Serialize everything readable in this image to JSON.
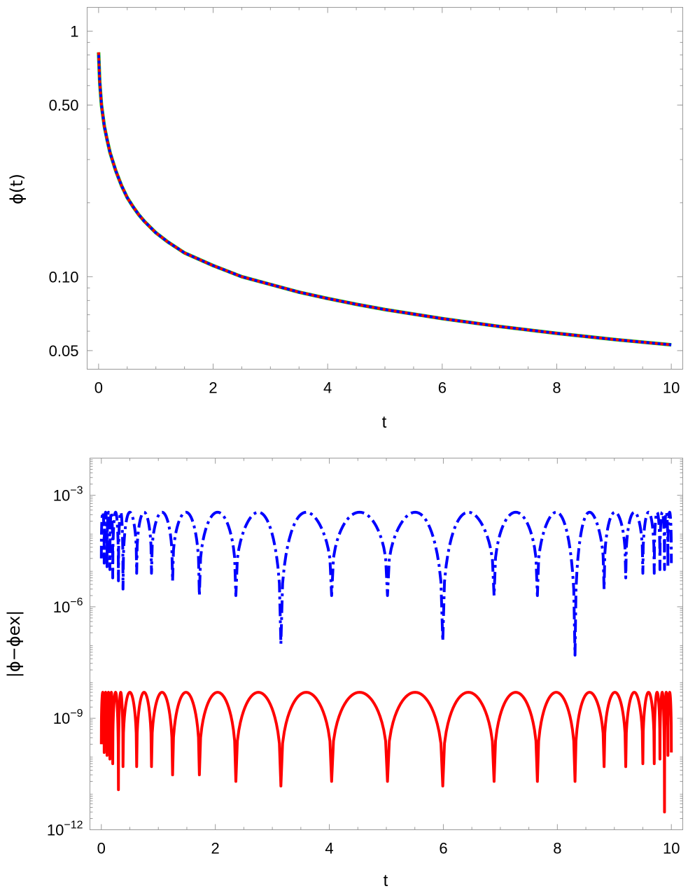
{
  "chart_data": [
    {
      "type": "line",
      "xlabel": "t",
      "ylabel": "ϕ(t)",
      "yscale": "log",
      "xlim": [
        -0.2,
        10.2
      ],
      "ylim": [
        0.042,
        1.25
      ],
      "xticks": [
        0,
        2,
        4,
        6,
        8,
        10
      ],
      "xtick_labels": [
        "0",
        "2",
        "4",
        "6",
        "8",
        "10"
      ],
      "yticks": [
        1,
        0.5,
        0.1,
        0.05
      ],
      "ytick_labels": [
        "1",
        "0.50",
        "0.10",
        "0.05"
      ],
      "grid": false,
      "series": [
        {
          "color": "#00dd00",
          "style": "solid",
          "x": [
            0.0,
            0.02,
            0.05,
            0.1,
            0.15,
            0.2,
            0.3,
            0.4,
            0.5,
            0.6,
            0.7,
            0.8,
            1.0,
            1.2,
            1.5,
            2.0,
            2.5,
            3.0,
            3.5,
            4.0,
            4.5,
            5.0,
            6.0,
            7.0,
            8.0,
            9.0,
            10.0
          ],
          "y": [
            0.82,
            0.62,
            0.5,
            0.41,
            0.36,
            0.32,
            0.27,
            0.235,
            0.21,
            0.193,
            0.179,
            0.168,
            0.151,
            0.139,
            0.125,
            0.111,
            0.1,
            0.093,
            0.0865,
            0.0815,
            0.0772,
            0.0735,
            0.0675,
            0.0627,
            0.0588,
            0.0555,
            0.0528
          ]
        },
        {
          "color": "#ff0000",
          "style": "dotted",
          "x": [
            0.0,
            0.02,
            0.05,
            0.1,
            0.15,
            0.2,
            0.3,
            0.4,
            0.5,
            0.6,
            0.7,
            0.8,
            1.0,
            1.2,
            1.5,
            2.0,
            2.5,
            3.0,
            3.5,
            4.0,
            4.5,
            5.0,
            6.0,
            7.0,
            8.0,
            9.0,
            10.0
          ],
          "y": [
            0.82,
            0.62,
            0.5,
            0.41,
            0.36,
            0.32,
            0.27,
            0.235,
            0.21,
            0.193,
            0.179,
            0.168,
            0.151,
            0.139,
            0.125,
            0.111,
            0.1,
            0.093,
            0.0865,
            0.0815,
            0.0772,
            0.0735,
            0.0675,
            0.0627,
            0.0588,
            0.0555,
            0.0528
          ]
        },
        {
          "color": "#0000ff",
          "style": "dotted",
          "x": [
            0.0,
            0.02,
            0.05,
            0.1,
            0.15,
            0.2,
            0.3,
            0.4,
            0.5,
            0.6,
            0.7,
            0.8,
            1.0,
            1.2,
            1.5,
            2.0,
            2.5,
            3.0,
            3.5,
            4.0,
            4.5,
            5.0,
            6.0,
            7.0,
            8.0,
            9.0,
            10.0
          ],
          "y": [
            0.82,
            0.62,
            0.5,
            0.41,
            0.36,
            0.32,
            0.27,
            0.235,
            0.21,
            0.193,
            0.179,
            0.168,
            0.151,
            0.139,
            0.125,
            0.111,
            0.1,
            0.093,
            0.0865,
            0.0815,
            0.0772,
            0.0735,
            0.0675,
            0.0627,
            0.0588,
            0.0555,
            0.0528
          ]
        }
      ]
    },
    {
      "type": "line",
      "xlabel": "t",
      "ylabel": "|ϕ−ϕex|",
      "yscale": "log",
      "xlim": [
        -0.2,
        10.2
      ],
      "ylim": [
        1e-12,
        0.01
      ],
      "xticks": [
        0,
        2,
        4,
        6,
        8,
        10
      ],
      "xtick_labels": [
        "0",
        "2",
        "4",
        "6",
        "8",
        "10"
      ],
      "yticks": [
        0.001,
        1e-06,
        1e-09,
        1e-12
      ],
      "ytick_labels": [
        "10^-3",
        "10^-6",
        "10^-9",
        "10^-12"
      ],
      "grid": false,
      "series": [
        {
          "color": "#0000ff",
          "style": "dashdot",
          "peak": 0.00035,
          "x": [
            0.0,
            0.05,
            0.1,
            0.15,
            0.2,
            0.3,
            0.38,
            0.62,
            0.88,
            1.25,
            1.72,
            2.36,
            3.15,
            4.04,
            5.02,
            5.99,
            6.89,
            7.65,
            8.31,
            8.82,
            9.2,
            9.5,
            9.7,
            9.8,
            9.88,
            9.94,
            10.0
          ],
          "y": [
            2e-05,
            1.5e-05,
            1.2e-05,
            1e-05,
            6e-06,
            5e-06,
            3e-06,
            8e-06,
            8e-06,
            5e-06,
            2e-06,
            2e-06,
            1e-07,
            2e-06,
            2e-06,
            1.2e-07,
            2e-06,
            2e-06,
            5e-08,
            3e-06,
            6e-06,
            8e-06,
            8e-06,
            1e-05,
            1e-05,
            1.2e-05,
            1.5e-05
          ]
        },
        {
          "color": "#ff0000",
          "style": "solid",
          "peak": 5e-09,
          "x": [
            0.0,
            0.05,
            0.1,
            0.15,
            0.2,
            0.3,
            0.38,
            0.62,
            0.88,
            1.25,
            1.72,
            2.36,
            3.15,
            4.04,
            5.02,
            5.99,
            6.89,
            7.65,
            8.31,
            8.82,
            9.2,
            9.5,
            9.7,
            9.8,
            9.88,
            9.94,
            10.0
          ],
          "y": [
            2e-10,
            1.2e-10,
            1e-10,
            8e-11,
            6e-11,
            1.2e-11,
            5e-11,
            5e-11,
            5e-11,
            3e-11,
            3e-11,
            2e-11,
            1.5e-11,
            2e-11,
            2e-11,
            1.5e-11,
            2e-11,
            2e-11,
            2e-11,
            5e-11,
            5e-11,
            6e-11,
            6e-11,
            8e-11,
            3e-12,
            1e-10,
            1.2e-10
          ]
        }
      ]
    }
  ]
}
